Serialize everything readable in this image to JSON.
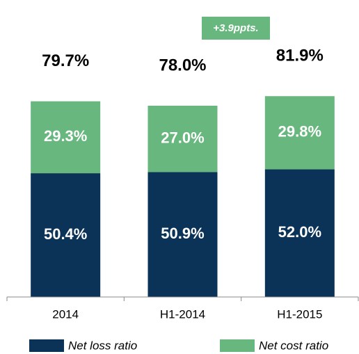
{
  "chart_data": {
    "type": "stacked_bar",
    "categories": [
      "2014",
      "H1-2014",
      "H1-2015"
    ],
    "series": [
      {
        "name": "Net loss ratio",
        "color": "#0b3358",
        "values": [
          50.4,
          50.9,
          52.0
        ],
        "value_labels": [
          "50.4%",
          "50.9%",
          "52.0%"
        ]
      },
      {
        "name": "Net cost ratio",
        "color": "#68b77e",
        "values": [
          29.3,
          27.0,
          29.8
        ],
        "value_labels": [
          "29.3%",
          "27.0%",
          "29.8%"
        ]
      }
    ],
    "totals": [
      79.7,
      78.0,
      81.9
    ],
    "total_labels": [
      "79.7%",
      "78.0%",
      "81.9%"
    ],
    "annotation": "+3.9ppts.",
    "ylim": [
      0,
      100
    ]
  }
}
